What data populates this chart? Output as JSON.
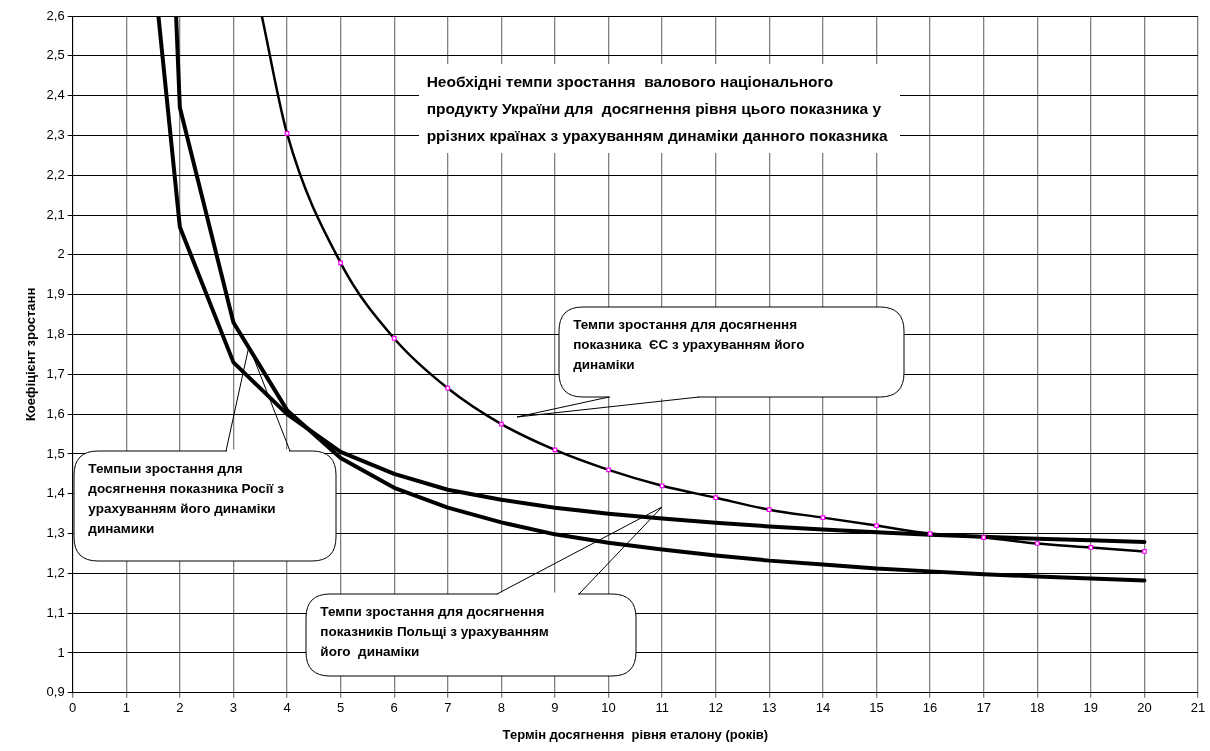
{
  "chart_data": {
    "type": "line",
    "title": "Необхідні темпи зростання  валового національного продукту України для  досягнення рівня цього показника у ррізних країнах з урахуванням динаміки данного показника",
    "xlabel": "Термін досягнення  рівня еталону (років)",
    "ylabel": "Коефіцієнт зростанн",
    "xlim": [
      0,
      21
    ],
    "xticks": [
      0,
      1,
      2,
      3,
      4,
      5,
      6,
      7,
      8,
      9,
      10,
      11,
      12,
      13,
      14,
      15,
      16,
      17,
      18,
      19,
      20,
      21
    ],
    "ylim": [
      0.9,
      2.6
    ],
    "yticks": [
      {
        "value": 0.9,
        "label": "0,9"
      },
      1,
      {
        "value": 1.1,
        "label": "1,1"
      },
      {
        "value": 1.2,
        "label": "1,2"
      },
      {
        "value": 1.3,
        "label": "1,3"
      },
      {
        "value": 1.4,
        "label": "1,4"
      },
      {
        "value": 1.5,
        "label": "1,5"
      },
      {
        "value": 1.6,
        "label": "1,6"
      },
      {
        "value": 1.7,
        "label": "1,7"
      },
      {
        "value": 1.8,
        "label": "1,8"
      },
      {
        "value": 1.9,
        "label": "1,9"
      },
      2,
      {
        "value": 2.1,
        "label": "2,1"
      },
      {
        "value": 2.2,
        "label": "2,2"
      },
      {
        "value": 2.3,
        "label": "2,3"
      },
      {
        "value": 2.4,
        "label": "2,4"
      },
      {
        "value": 2.5,
        "label": "2,5"
      },
      {
        "value": 2.6,
        "label": "2,6"
      }
    ],
    "grid": true,
    "legend": false,
    "line_style": "solid",
    "series": [
      {
        "color": "#000000",
        "marker": "square",
        "x": [
          3.53,
          4,
          5,
          6,
          7,
          8,
          9,
          10,
          11,
          12,
          13,
          14,
          15,
          16,
          17,
          18,
          19,
          20
        ],
        "values": [
          2.6,
          2.305,
          1.98,
          1.79,
          1.665,
          1.575,
          1.51,
          1.46,
          1.42,
          1.39,
          1.36,
          1.34,
          1.32,
          1.3,
          1.29,
          1.275,
          1.265,
          1.255
        ]
      },
      {
        "color": "#000000",
        "marker": "none",
        "x": [
          1.6,
          2,
          3,
          4,
          5,
          6,
          7,
          8,
          9,
          10,
          11,
          12,
          13,
          14,
          15,
          16,
          17,
          18,
          19,
          20
        ],
        "values": [
          2.6,
          2.07,
          1.73,
          1.6,
          1.505,
          1.45,
          1.41,
          1.385,
          1.365,
          1.35,
          1.338,
          1.327,
          1.318,
          1.31,
          1.303,
          1.297,
          1.292,
          1.287,
          1.283,
          1.279
        ]
      },
      {
        "color": "#000000",
        "marker": "none",
        "x": [
          1.93,
          2,
          3,
          4,
          5,
          6,
          7,
          8,
          9,
          10,
          11,
          12,
          13,
          14,
          15,
          16,
          17,
          18,
          19,
          20
        ],
        "values": [
          2.6,
          2.37,
          1.83,
          1.61,
          1.49,
          1.415,
          1.365,
          1.328,
          1.298,
          1.277,
          1.26,
          1.245,
          1.232,
          1.222,
          1.212,
          1.205,
          1.198,
          1.192,
          1.187,
          1.182
        ]
      }
    ],
    "annotations": [
      "Темпи зростання для досягнення показника  ЄС з урахуванням його динаміки",
      "Темпыи зростання для досягнення показника Росії з урахуванням його динаміки динамики",
      "Темпи зростання для досягнення показників Польщі з урахуванням його  динаміки"
    ]
  }
}
